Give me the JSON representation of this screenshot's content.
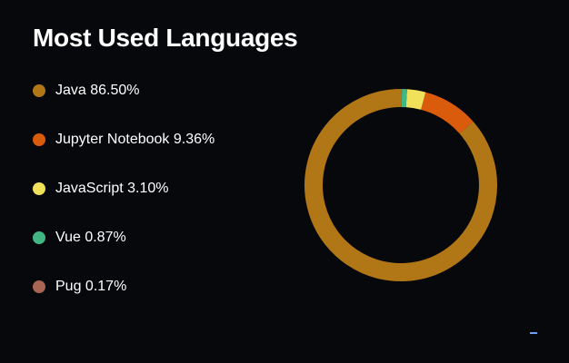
{
  "chart_data": {
    "type": "pie",
    "title": "Most Used Languages",
    "series": [
      {
        "name": "Java",
        "value": 86.5,
        "label": "86.50%",
        "color": "#b17717"
      },
      {
        "name": "Jupyter Notebook",
        "value": 9.36,
        "label": "9.36%",
        "color": "#da5b0b"
      },
      {
        "name": "JavaScript",
        "value": 3.1,
        "label": "3.10%",
        "color": "#f1e05a"
      },
      {
        "name": "Vue",
        "value": 0.87,
        "label": "0.87%",
        "color": "#41b883"
      },
      {
        "name": "Pug",
        "value": 0.17,
        "label": "0.17%",
        "color": "#a86454"
      }
    ],
    "legend_position": "left",
    "background": "#06080c",
    "text_color": "#ffffff"
  }
}
